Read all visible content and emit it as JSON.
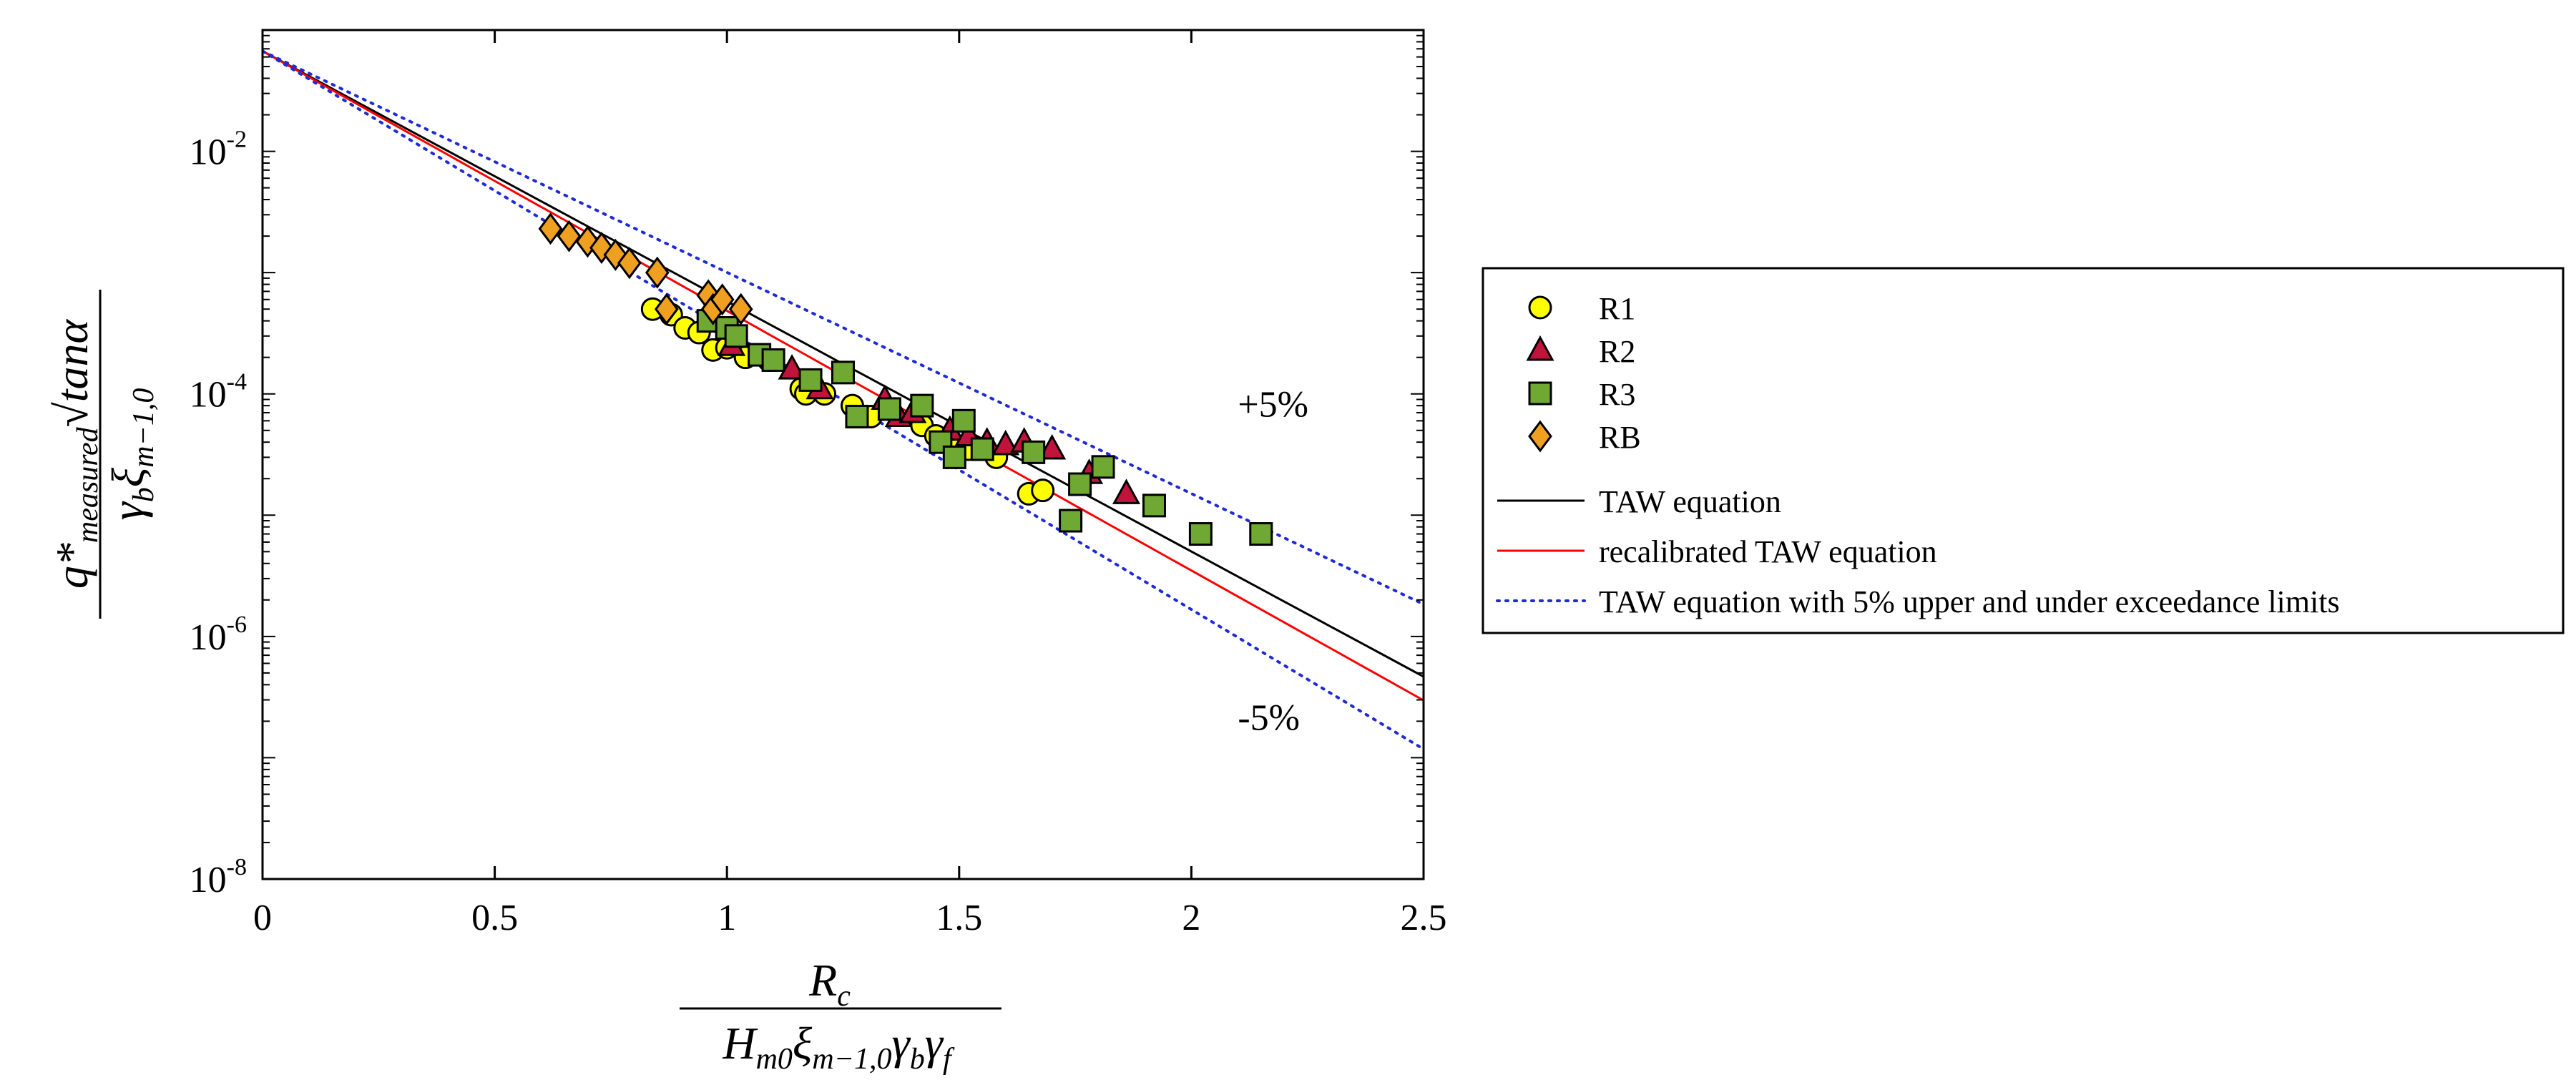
{
  "chart_data": {
    "type": "scatter",
    "title": "",
    "xlabel": {
      "numerator": "R",
      "numerator_sub": "c",
      "denominator": "H",
      "denominator_sub": "m0",
      "denominator_rest": "ξ",
      "denominator_rest_sub": "m−1,0",
      "denominator_gamma": "γ",
      "denominator_gamma_sub1": "b",
      "denominator_gamma_sub2": "f"
    },
    "ylabel": {
      "numerator": "q*",
      "numerator_sub": "measured",
      "numerator_root": "tanα",
      "denominator": "γ",
      "denominator_sub": "b",
      "denominator_xi": "ξ",
      "denominator_xi_sub": "m−1,0"
    },
    "xlim": [
      0,
      2.5
    ],
    "ylim": [
      1e-08,
      0.1
    ],
    "yscale": "log",
    "x_ticks": [
      "0",
      "0.5",
      "1",
      "1.5",
      "2",
      "2.5"
    ],
    "y_ticks": [
      {
        "base": "10",
        "exp": "-8",
        "value": 1e-08
      },
      {
        "base": "10",
        "exp": "-6",
        "value": 1e-06
      },
      {
        "base": "10",
        "exp": "-4",
        "value": 0.0001
      },
      {
        "base": "10",
        "exp": "-2",
        "value": 0.01
      }
    ],
    "legend_position": "outside-right",
    "annotations": [
      {
        "text": "+5%",
        "x": 2.1,
        "y": 6.5e-05
      },
      {
        "text": "-5%",
        "x": 2.1,
        "y": 1.7e-07
      }
    ],
    "series": [
      {
        "name": "R1",
        "marker": "circle",
        "color": "#ffff00",
        "points": [
          [
            0.84,
            0.0005
          ],
          [
            0.88,
            0.00045
          ],
          [
            0.91,
            0.00035
          ],
          [
            0.94,
            0.00032
          ],
          [
            0.97,
            0.00023
          ],
          [
            1.0,
            0.00024
          ],
          [
            1.04,
            0.0002
          ],
          [
            1.09,
            0.00019
          ],
          [
            1.16,
            0.00011
          ],
          [
            1.17,
            0.0001
          ],
          [
            1.21,
            0.0001
          ],
          [
            1.27,
            8e-05
          ],
          [
            1.31,
            6.5e-05
          ],
          [
            1.42,
            5.5e-05
          ],
          [
            1.45,
            4.5e-05
          ],
          [
            1.48,
            4.2e-05
          ],
          [
            1.52,
            3.5e-05
          ],
          [
            1.58,
            3e-05
          ],
          [
            1.65,
            1.5e-05
          ],
          [
            1.68,
            1.6e-05
          ]
        ]
      },
      {
        "name": "R2",
        "marker": "triangle",
        "color": "#c0143c",
        "points": [
          [
            1.01,
            0.00025
          ],
          [
            1.14,
            0.00016
          ],
          [
            1.2,
            0.00011
          ],
          [
            1.34,
            9e-05
          ],
          [
            1.37,
            6.5e-05
          ],
          [
            1.4,
            7e-05
          ],
          [
            1.48,
            5e-05
          ],
          [
            1.52,
            4.5e-05
          ],
          [
            1.56,
            4e-05
          ],
          [
            1.6,
            3.8e-05
          ],
          [
            1.64,
            4e-05
          ],
          [
            1.7,
            3.5e-05
          ],
          [
            1.78,
            2.2e-05
          ],
          [
            1.86,
            1.5e-05
          ]
        ]
      },
      {
        "name": "R3",
        "marker": "square",
        "color": "#6fa832",
        "points": [
          [
            0.96,
            0.0004
          ],
          [
            1.0,
            0.00035
          ],
          [
            1.02,
            0.0003
          ],
          [
            1.07,
            0.00021
          ],
          [
            1.1,
            0.00019
          ],
          [
            1.18,
            0.00013
          ],
          [
            1.25,
            0.00015
          ],
          [
            1.28,
            6.5e-05
          ],
          [
            1.35,
            7.5e-05
          ],
          [
            1.42,
            8e-05
          ],
          [
            1.46,
            4e-05
          ],
          [
            1.49,
            3e-05
          ],
          [
            1.51,
            6e-05
          ],
          [
            1.55,
            3.5e-05
          ],
          [
            1.66,
            3.3e-05
          ],
          [
            1.74,
            9e-06
          ],
          [
            1.76,
            1.8e-05
          ],
          [
            1.81,
            2.5e-05
          ],
          [
            1.92,
            1.2e-05
          ],
          [
            2.02,
            7e-06
          ],
          [
            2.15,
            7e-06
          ]
        ]
      },
      {
        "name": "RB",
        "marker": "diamond",
        "color": "#f0a020",
        "points": [
          [
            0.62,
            0.0023
          ],
          [
            0.66,
            0.002
          ],
          [
            0.7,
            0.0018
          ],
          [
            0.73,
            0.0016
          ],
          [
            0.76,
            0.0014
          ],
          [
            0.79,
            0.0012
          ],
          [
            0.85,
            0.001
          ],
          [
            0.87,
            0.0005
          ],
          [
            0.96,
            0.00065
          ],
          [
            0.97,
            0.0005
          ],
          [
            0.99,
            0.0006
          ],
          [
            1.03,
            0.0005
          ]
        ]
      }
    ],
    "lines": [
      {
        "name": "TAW equation",
        "color": "#000000",
        "style": "solid",
        "a": 0.067,
        "b": 4.75
      },
      {
        "name": "recalibrated TAW equation",
        "color": "#ff0000",
        "style": "solid",
        "a": 0.067,
        "b": 4.93
      },
      {
        "name": "TAW equation with 5% upper and under exceedance limits",
        "color": "#1f2ad8",
        "style": "dotted",
        "a": 0.067,
        "b": 4.2
      },
      {
        "name": "",
        "color": "#1f2ad8",
        "style": "dotted",
        "a": 0.067,
        "b": 5.3
      }
    ],
    "legend": [
      {
        "label": "R1",
        "kind": "marker",
        "marker": "circle",
        "color": "#ffff00"
      },
      {
        "label": "R2",
        "kind": "marker",
        "marker": "triangle",
        "color": "#c0143c"
      },
      {
        "label": "R3",
        "kind": "marker",
        "marker": "square",
        "color": "#6fa832"
      },
      {
        "label": "RB",
        "kind": "marker",
        "marker": "diamond",
        "color": "#f0a020"
      },
      {
        "label": "TAW equation",
        "kind": "line",
        "color": "#000000",
        "style": "solid"
      },
      {
        "label": "recalibrated TAW equation",
        "kind": "line",
        "color": "#ff0000",
        "style": "solid"
      },
      {
        "label": "TAW equation with 5% upper and under exceedance limits",
        "kind": "line",
        "color": "#1f2ad8",
        "style": "dotted"
      }
    ]
  }
}
